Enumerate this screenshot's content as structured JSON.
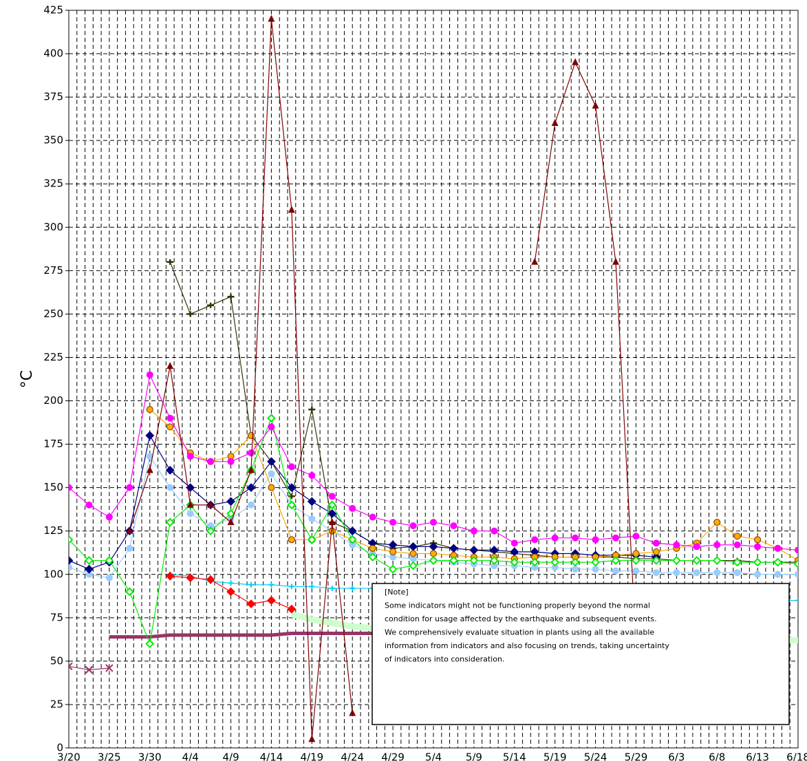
{
  "chart_data": {
    "type": "line",
    "y_label": "°C",
    "categories": [
      "3/20",
      null,
      "3/25",
      null,
      "3/30",
      null,
      "4/4",
      null,
      "4/9",
      null,
      "4/14",
      null,
      "4/19",
      null,
      "4/24",
      null,
      "4/29",
      null,
      "5/4",
      null,
      "5/9",
      null,
      "5/14",
      null,
      "5/19",
      null,
      "5/24",
      null,
      "5/29",
      null,
      "6/3",
      null,
      "6/8",
      null,
      "6/13",
      null,
      "6/18"
    ],
    "ylim": [
      0,
      425
    ],
    "yticks": [
      0,
      25,
      50,
      75,
      100,
      125,
      150,
      175,
      200,
      225,
      250,
      275,
      300,
      325,
      350,
      375,
      400,
      425
    ],
    "grid": true,
    "series": [
      {
        "color": "#ccffcc",
        "marker": "none",
        "width": 9,
        "values": [
          null,
          null,
          null,
          null,
          null,
          null,
          null,
          null,
          null,
          null,
          null,
          77,
          74,
          72,
          70,
          69,
          68,
          67,
          67,
          66,
          66,
          65,
          65,
          64,
          64,
          64,
          63,
          63,
          63,
          62,
          62,
          62,
          62,
          62,
          62,
          62,
          62
        ]
      },
      {
        "color": "#993366",
        "marker": "x",
        "values": [
          47,
          45,
          46,
          null,
          null,
          null,
          null,
          null,
          null,
          null,
          null,
          null,
          null,
          null,
          null,
          null,
          null,
          null,
          null,
          null,
          null,
          null,
          null,
          null,
          null,
          null,
          null,
          null,
          null,
          null,
          null,
          null,
          null,
          null,
          null,
          null,
          null
        ]
      },
      {
        "color": "#993366",
        "marker": "none",
        "width": 5,
        "values": [
          null,
          null,
          64,
          64,
          64,
          65,
          65,
          65,
          65,
          65,
          65,
          66,
          66,
          66,
          66,
          66,
          65,
          65,
          64,
          64,
          64,
          63,
          63,
          63,
          63,
          63,
          63,
          63,
          63,
          null,
          null,
          null,
          null,
          null,
          null,
          null,
          null
        ]
      },
      {
        "color": "#00ccff",
        "marker": "plus",
        "values": [
          null,
          null,
          null,
          null,
          null,
          100,
          99,
          96,
          95,
          94,
          94,
          93,
          93,
          92,
          92,
          92,
          91,
          91,
          91,
          90,
          90,
          90,
          89,
          89,
          89,
          89,
          88,
          88,
          88,
          87,
          87,
          87,
          86,
          86,
          85,
          85,
          85
        ]
      },
      {
        "color": "#ff0000",
        "marker": "diamond",
        "values": [
          null,
          null,
          null,
          null,
          null,
          99,
          98,
          97,
          90,
          83,
          85,
          80,
          null,
          null,
          null,
          null,
          null,
          null,
          null,
          null,
          null,
          null,
          null,
          null,
          null,
          null,
          null,
          null,
          null,
          null,
          null,
          null,
          null,
          null,
          null,
          null,
          null
        ]
      },
      {
        "color": "#99ccff",
        "marker": "circle",
        "values": [
          104,
          100,
          98,
          115,
          168,
          150,
          135,
          128,
          132,
          140,
          158,
          140,
          132,
          125,
          117,
          112,
          110,
          109,
          108,
          107,
          106,
          105,
          105,
          104,
          104,
          103,
          103,
          102,
          102,
          101,
          101,
          101,
          101,
          101,
          100,
          100,
          100
        ]
      },
      {
        "color": "#333300",
        "marker": "dash",
        "values": [
          null,
          null,
          null,
          null,
          null,
          280,
          250,
          255,
          260,
          180,
          165,
          145,
          195,
          130,
          125,
          118,
          115,
          116,
          118,
          115,
          114,
          113,
          112,
          111,
          110,
          110,
          110,
          110,
          109,
          109,
          108,
          108,
          108,
          108,
          107,
          107,
          107
        ]
      },
      {
        "color": "#000080",
        "marker": "diamond",
        "values": [
          108,
          103,
          107,
          125,
          180,
          160,
          150,
          140,
          142,
          150,
          165,
          150,
          142,
          135,
          125,
          118,
          117,
          116,
          116,
          115,
          114,
          114,
          113,
          113,
          112,
          112,
          111,
          111,
          111,
          110,
          null,
          null,
          null,
          null,
          null,
          null,
          null
        ]
      },
      {
        "color": "#ffaa00",
        "marker": "circle",
        "values": [
          null,
          null,
          null,
          null,
          195,
          185,
          170,
          165,
          168,
          180,
          150,
          120,
          120,
          125,
          120,
          115,
          113,
          112,
          112,
          111,
          110,
          110,
          109,
          110,
          110,
          110,
          110,
          111,
          112,
          113,
          115,
          118,
          130,
          122,
          120,
          115,
          108
        ]
      },
      {
        "color": "#00ee00",
        "marker": "diamond",
        "values": [
          120,
          108,
          108,
          90,
          60,
          130,
          140,
          125,
          135,
          160,
          190,
          140,
          120,
          140,
          120,
          110,
          103,
          105,
          108,
          108,
          108,
          108,
          107,
          107,
          107,
          107,
          107,
          108,
          108,
          108,
          108,
          108,
          108,
          107,
          107,
          107,
          106
        ]
      },
      {
        "color": "#ff00ff",
        "marker": "circle",
        "values": [
          150,
          140,
          133,
          150,
          215,
          190,
          168,
          165,
          165,
          170,
          185,
          162,
          157,
          145,
          138,
          133,
          130,
          128,
          130,
          128,
          125,
          125,
          118,
          120,
          121,
          121,
          120,
          121,
          122,
          118,
          117,
          116,
          117,
          117,
          116,
          115,
          114
        ]
      },
      {
        "color": "#800000",
        "marker": "triangle",
        "values": [
          null,
          null,
          null,
          125,
          160,
          220,
          140,
          140,
          130,
          160,
          420,
          310,
          5,
          130,
          20,
          null,
          null,
          null,
          null,
          null,
          null,
          null,
          null,
          280,
          360,
          395,
          370,
          280,
          60,
          null,
          null,
          null,
          null,
          null,
          null,
          null,
          null
        ]
      }
    ],
    "note": [
      "[Note]",
      "Some indicators might not be functioning properly beyond the normal",
      "condition for usage affected by the earthquake and subsequent events.",
      "We comprehensively evaluate situation in plants using all the available",
      "information from indicators and also focusing on trends, taking uncertainty",
      "of indicators into consideration."
    ]
  }
}
